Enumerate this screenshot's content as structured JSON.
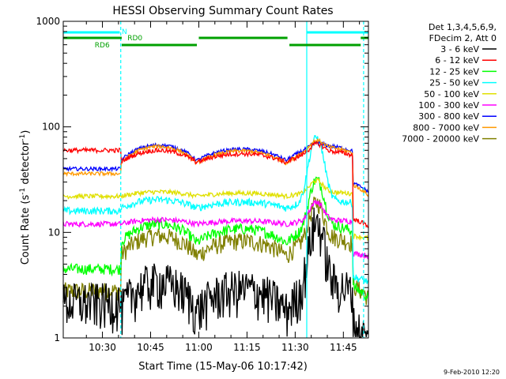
{
  "chart_data": {
    "type": "line",
    "title": "HESSI Observing Summary Count Rates",
    "xlabel": "Start Time (15-May-06 10:17:42)",
    "ylabel_main": "Count Rate (s",
    "ylabel_sup1": "-1",
    "ylabel_mid": " detector",
    "ylabel_sup2": "-1",
    "ylabel_end": ")",
    "y_scale": "log",
    "ylim": [
      1,
      1000
    ],
    "xlim_minutes": [
      10.2967,
      11.88
    ],
    "x_ticks": [
      {
        "label": "10:30",
        "value": 10.5
      },
      {
        "label": "10:45",
        "value": 10.75
      },
      {
        "label": "11:00",
        "value": 11.0
      },
      {
        "label": "11:15",
        "value": 11.25
      },
      {
        "label": "11:30",
        "value": 11.5
      },
      {
        "label": "11:45",
        "value": 11.75
      }
    ],
    "y_ticks": [
      {
        "label": "1",
        "value": 1
      },
      {
        "label": "10",
        "value": 10
      },
      {
        "label": "100",
        "value": 100
      },
      {
        "label": "1000",
        "value": 1000
      }
    ],
    "legend_header": [
      "Det 1,3,4,5,6,9,",
      "FDecim 2, Att 0"
    ],
    "legend_placement": "right",
    "flags": [
      {
        "label": "N",
        "color": "#00ffff"
      },
      {
        "label": "RD0",
        "color": "#00a000"
      },
      {
        "label": "RD6",
        "color": "#00a000"
      }
    ],
    "series": [
      {
        "name": "3 - 6 keV",
        "color": "#000000"
      },
      {
        "name": "6 - 12 keV",
        "color": "#ff0000"
      },
      {
        "name": "12 - 25 keV",
        "color": "#00ff00"
      },
      {
        "name": "25 - 50 keV",
        "color": "#00ffff"
      },
      {
        "name": "50 - 100 keV",
        "color": "#e0e000"
      },
      {
        "name": "100 - 300 keV",
        "color": "#ff00ff"
      },
      {
        "name": "300 - 800 keV",
        "color": "#0000ff"
      },
      {
        "name": "800 - 7000 keV",
        "color": "#ff9900"
      },
      {
        "name": "7000 - 20000 keV",
        "color": "#808000"
      }
    ],
    "timestamp": "9-Feb-2010 12:20"
  }
}
